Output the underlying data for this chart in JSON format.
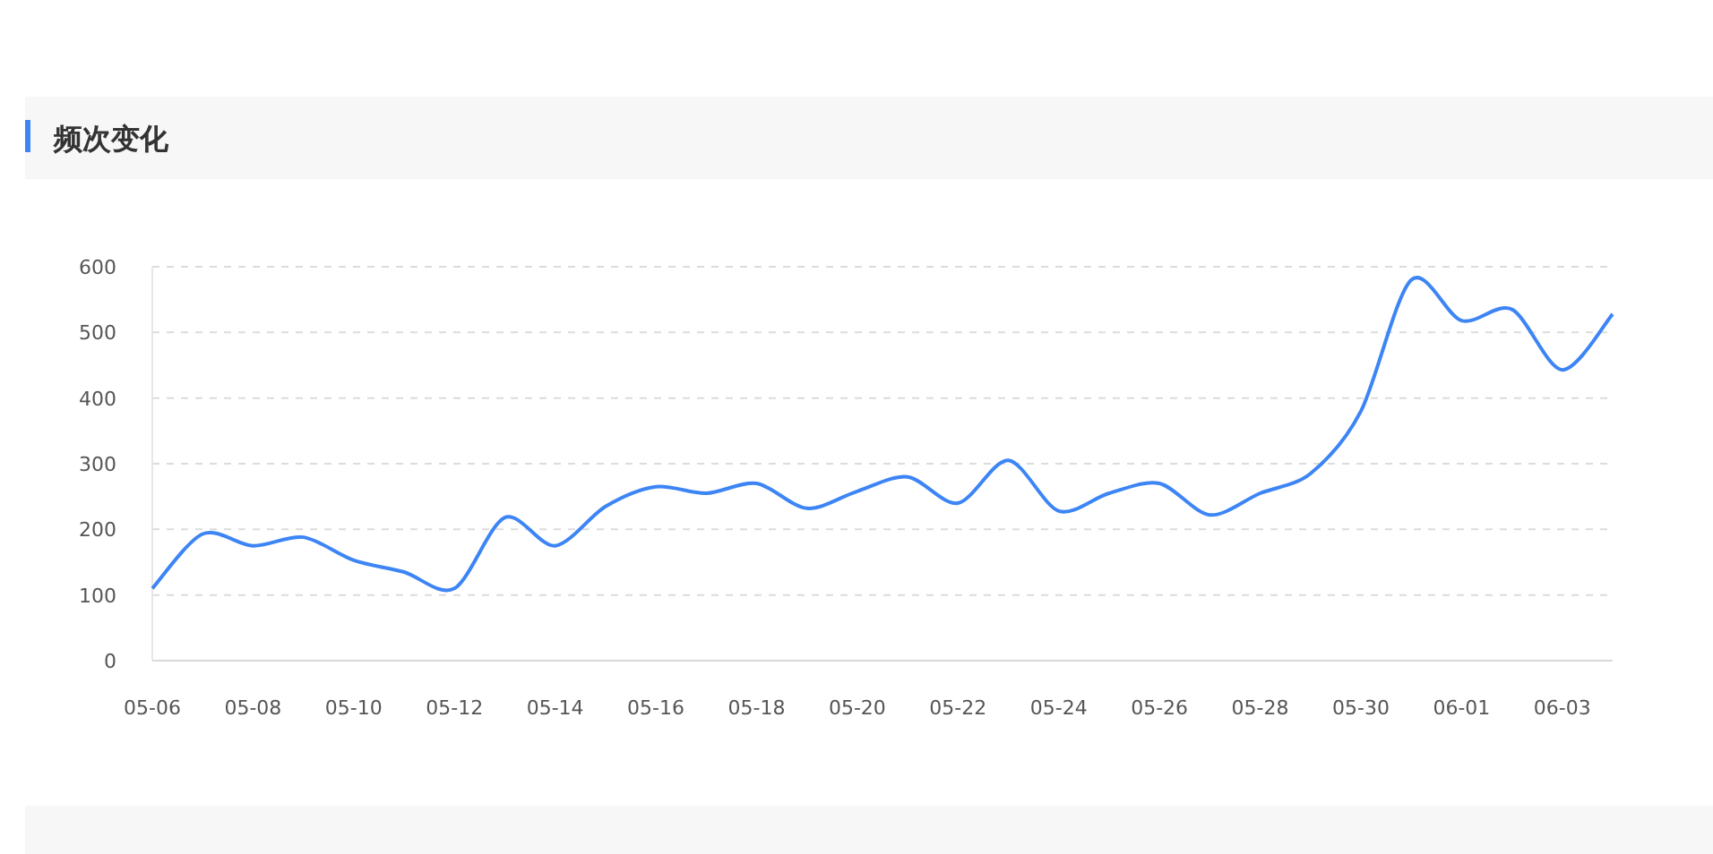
{
  "chart_data": {
    "type": "line",
    "title": "频次变化",
    "categories": [
      "05-06",
      null,
      "05-08",
      null,
      "05-10",
      null,
      "05-12",
      null,
      "05-14",
      null,
      "05-16",
      null,
      "05-18",
      null,
      "05-20",
      null,
      "05-22",
      null,
      "05-24",
      null,
      "05-26",
      null,
      "05-28",
      null,
      "05-30",
      null,
      "06-01",
      null,
      "06-03",
      null
    ],
    "values": [
      110,
      193,
      175,
      188,
      153,
      135,
      110,
      218,
      175,
      235,
      265,
      255,
      270,
      232,
      258,
      280,
      240,
      305,
      228,
      255,
      270,
      222,
      255,
      285,
      380,
      580,
      518,
      535,
      443,
      528
    ],
    "color": "#3d85f5",
    "ylim": [
      0,
      600
    ],
    "yticks": [
      0,
      100,
      200,
      300,
      400,
      500,
      600
    ],
    "grid": "y",
    "marker": "none",
    "line_style": "solid"
  }
}
